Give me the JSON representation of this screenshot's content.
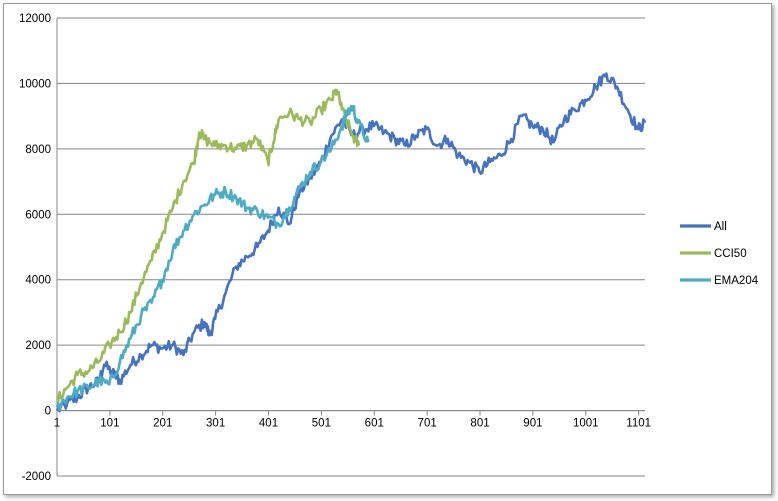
{
  "chart_data": {
    "type": "line",
    "title": "",
    "xlabel": "",
    "ylabel": "",
    "x_ticks": [
      "1",
      "101",
      "201",
      "301",
      "401",
      "501",
      "601",
      "701",
      "801",
      "901",
      "1001",
      "1101"
    ],
    "y_ticks": [
      "-2000",
      "0",
      "2000",
      "4000",
      "6000",
      "8000",
      "10000",
      "12000"
    ],
    "xlim": [
      1,
      1113
    ],
    "ylim": [
      -2000,
      12000
    ],
    "grid": "horizontal",
    "legend_position": "right",
    "series": [
      {
        "name": "All",
        "color": "#4472c4",
        "points": [
          [
            1,
            0
          ],
          [
            20,
            200
          ],
          [
            40,
            400
          ],
          [
            60,
            700
          ],
          [
            80,
            900
          ],
          [
            90,
            1400
          ],
          [
            110,
            1100
          ],
          [
            120,
            900
          ],
          [
            140,
            1400
          ],
          [
            160,
            1700
          ],
          [
            180,
            2000
          ],
          [
            200,
            1900
          ],
          [
            220,
            2000
          ],
          [
            240,
            1700
          ],
          [
            260,
            2400
          ],
          [
            280,
            2700
          ],
          [
            290,
            2300
          ],
          [
            300,
            2800
          ],
          [
            320,
            3600
          ],
          [
            340,
            4400
          ],
          [
            360,
            4700
          ],
          [
            380,
            5000
          ],
          [
            400,
            5500
          ],
          [
            420,
            6200
          ],
          [
            440,
            5700
          ],
          [
            460,
            6700
          ],
          [
            480,
            7100
          ],
          [
            500,
            7600
          ],
          [
            520,
            8400
          ],
          [
            540,
            8900
          ],
          [
            560,
            8400
          ],
          [
            580,
            8600
          ],
          [
            600,
            8700
          ],
          [
            620,
            8500
          ],
          [
            640,
            8300
          ],
          [
            660,
            8100
          ],
          [
            680,
            8400
          ],
          [
            700,
            8600
          ],
          [
            720,
            8100
          ],
          [
            740,
            8300
          ],
          [
            760,
            7800
          ],
          [
            780,
            7600
          ],
          [
            800,
            7300
          ],
          [
            820,
            7600
          ],
          [
            840,
            7800
          ],
          [
            860,
            8300
          ],
          [
            880,
            9000
          ],
          [
            900,
            8700
          ],
          [
            920,
            8600
          ],
          [
            940,
            8200
          ],
          [
            960,
            8900
          ],
          [
            980,
            9200
          ],
          [
            1000,
            9500
          ],
          [
            1020,
            9900
          ],
          [
            1040,
            10300
          ],
          [
            1060,
            9900
          ],
          [
            1080,
            9200
          ],
          [
            1100,
            8600
          ],
          [
            1113,
            8800
          ]
        ]
      },
      {
        "name": "CCI50",
        "color": "#9bbb59",
        "points": [
          [
            1,
            300
          ],
          [
            20,
            700
          ],
          [
            40,
            1100
          ],
          [
            60,
            1200
          ],
          [
            80,
            1500
          ],
          [
            100,
            2000
          ],
          [
            120,
            2400
          ],
          [
            140,
            3000
          ],
          [
            160,
            3900
          ],
          [
            180,
            4600
          ],
          [
            200,
            5400
          ],
          [
            220,
            6200
          ],
          [
            240,
            7000
          ],
          [
            260,
            7600
          ],
          [
            270,
            8500
          ],
          [
            280,
            8300
          ],
          [
            300,
            8100
          ],
          [
            320,
            8100
          ],
          [
            340,
            8000
          ],
          [
            360,
            8100
          ],
          [
            380,
            8300
          ],
          [
            400,
            7600
          ],
          [
            410,
            8200
          ],
          [
            420,
            8900
          ],
          [
            440,
            9100
          ],
          [
            460,
            8900
          ],
          [
            480,
            8800
          ],
          [
            500,
            9200
          ],
          [
            520,
            9500
          ],
          [
            530,
            9800
          ],
          [
            540,
            9200
          ],
          [
            560,
            8400
          ],
          [
            572,
            8100
          ]
        ]
      },
      {
        "name": "EMA204",
        "color": "#4bacc6",
        "points": [
          [
            1,
            100
          ],
          [
            20,
            400
          ],
          [
            40,
            600
          ],
          [
            60,
            700
          ],
          [
            80,
            900
          ],
          [
            100,
            800
          ],
          [
            120,
            1500
          ],
          [
            140,
            2200
          ],
          [
            160,
            2900
          ],
          [
            180,
            3300
          ],
          [
            200,
            4000
          ],
          [
            220,
            4900
          ],
          [
            240,
            5500
          ],
          [
            260,
            6000
          ],
          [
            280,
            6300
          ],
          [
            300,
            6600
          ],
          [
            320,
            6700
          ],
          [
            340,
            6500
          ],
          [
            360,
            6200
          ],
          [
            380,
            6100
          ],
          [
            400,
            5900
          ],
          [
            420,
            5700
          ],
          [
            440,
            6200
          ],
          [
            460,
            6800
          ],
          [
            480,
            7300
          ],
          [
            500,
            7600
          ],
          [
            520,
            8000
          ],
          [
            540,
            8700
          ],
          [
            550,
            9100
          ],
          [
            560,
            9300
          ],
          [
            570,
            8800
          ],
          [
            590,
            8200
          ]
        ]
      }
    ]
  }
}
